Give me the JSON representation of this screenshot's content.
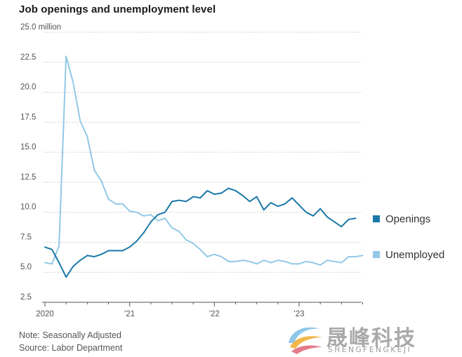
{
  "title": "Job openings and unemployment level",
  "notes": {
    "note": "Note: Seasonally Adjusted",
    "source": "Source: Labor Department"
  },
  "watermark": {
    "chinese": "晟峰科技",
    "english": "SHENGFENGKEJI"
  },
  "colors": {
    "openings": "#1a78a8",
    "unemployed": "#92c8e6",
    "grid": "#cfcfcf",
    "axis": "#555555"
  },
  "chart_data": {
    "type": "line",
    "title": "Job openings and unemployment level",
    "xlabel": "",
    "ylabel": "",
    "ylim": [
      2.5,
      25.0
    ],
    "y_ticks": [
      2.5,
      5.0,
      7.5,
      10.0,
      12.5,
      15.0,
      17.5,
      20.0,
      22.5,
      25.0
    ],
    "y_tick_labels": [
      "2.5",
      "5.0",
      "7.5",
      "10.0",
      "12.5",
      "15.0",
      "17.5",
      "20.0",
      "22.5",
      "25.0 million"
    ],
    "x_tick_labels": [
      "2020",
      "'21",
      "'22",
      "'23"
    ],
    "x": [
      "2020-01",
      "2020-02",
      "2020-03",
      "2020-04",
      "2020-05",
      "2020-06",
      "2020-07",
      "2020-08",
      "2020-09",
      "2020-10",
      "2020-11",
      "2020-12",
      "2021-01",
      "2021-02",
      "2021-03",
      "2021-04",
      "2021-05",
      "2021-06",
      "2021-07",
      "2021-08",
      "2021-09",
      "2021-10",
      "2021-11",
      "2021-12",
      "2022-01",
      "2022-02",
      "2022-03",
      "2022-04",
      "2022-05",
      "2022-06",
      "2022-07",
      "2022-08",
      "2022-09",
      "2022-10",
      "2022-11",
      "2022-12",
      "2023-01",
      "2023-02",
      "2023-03",
      "2023-04",
      "2023-05",
      "2023-06",
      "2023-07",
      "2023-08",
      "2023-09",
      "2023-10"
    ],
    "grid": true,
    "legend": "right",
    "series": [
      {
        "name": "Openings",
        "values": [
          7.1,
          6.9,
          5.8,
          4.6,
          5.5,
          6.0,
          6.4,
          6.3,
          6.5,
          6.8,
          6.8,
          6.8,
          7.1,
          7.6,
          8.3,
          9.2,
          9.8,
          10.0,
          10.9,
          11.0,
          10.9,
          11.3,
          11.2,
          11.8,
          11.5,
          11.6,
          12.0,
          11.8,
          11.4,
          10.9,
          11.3,
          10.2,
          10.8,
          10.5,
          10.7,
          11.2,
          10.6,
          10.0,
          9.7,
          10.3,
          9.6,
          9.2,
          8.8,
          9.4,
          9.5,
          null
        ],
        "end_index": 44
      },
      {
        "name": "Unemployed",
        "values": [
          5.8,
          5.7,
          7.2,
          23.0,
          20.8,
          17.6,
          16.3,
          13.5,
          12.6,
          11.1,
          10.7,
          10.7,
          10.1,
          10.0,
          9.7,
          9.8,
          9.3,
          9.5,
          8.7,
          8.4,
          7.7,
          7.4,
          6.9,
          6.3,
          6.5,
          6.3,
          5.9,
          5.9,
          6.0,
          5.9,
          5.7,
          6.0,
          5.8,
          6.0,
          5.9,
          5.7,
          5.7,
          5.9,
          5.8,
          5.6,
          6.0,
          5.9,
          5.8,
          6.3,
          6.3,
          6.4
        ]
      }
    ]
  }
}
